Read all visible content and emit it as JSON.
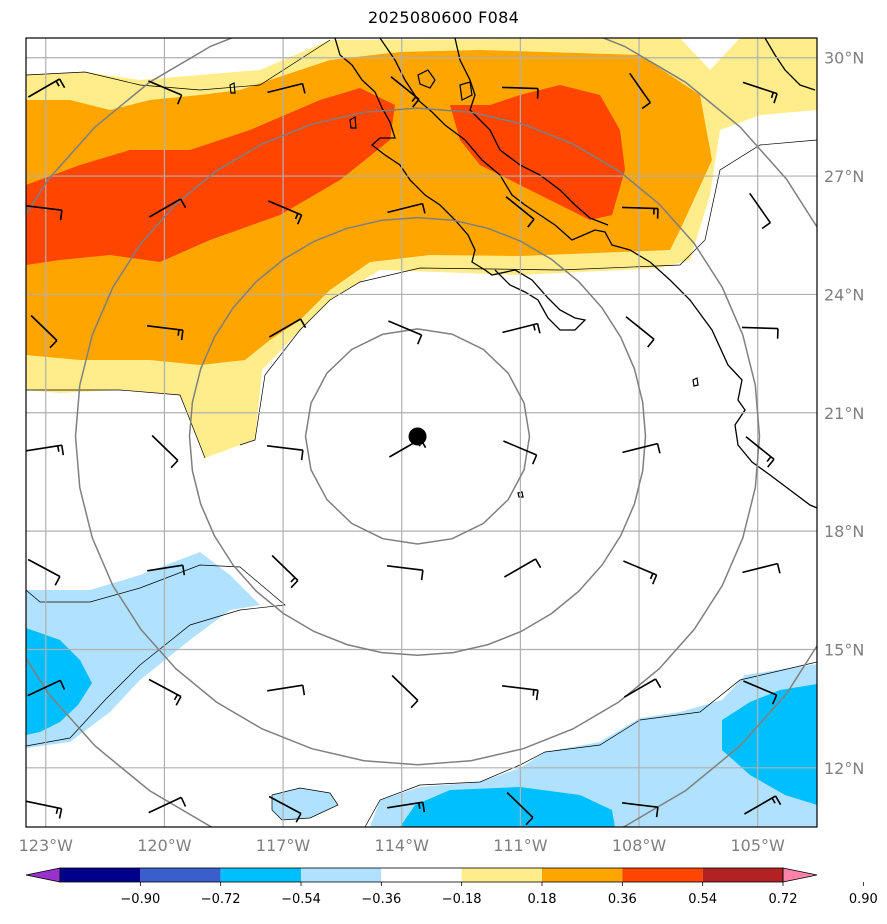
{
  "title": "2025080600 F084",
  "longitude_labels": [
    "123°W",
    "120°W",
    "117°W",
    "114°W",
    "111°W",
    "108°W",
    "105°W"
  ],
  "latitude_labels": [
    "30°N",
    "27°N",
    "24°N",
    "21°N",
    "18°N",
    "15°N",
    "12°N"
  ],
  "colorbar": {
    "ticks": [
      "−0.90",
      "−0.72",
      "−0.54",
      "−0.36",
      "−0.18",
      "0.18",
      "0.36",
      "0.54",
      "0.72",
      "0.90"
    ],
    "colors": [
      "#9932cc",
      "#00008b",
      "#3a5fcd",
      "#00bfff",
      "#b0e2ff",
      "#ffffff",
      "#ffec8b",
      "#ffa500",
      "#ff4500",
      "#b22222",
      "#ff82ab"
    ]
  },
  "storm_center": {
    "lon": -113.6,
    "lat": 20.4
  },
  "chart_data": {
    "type": "map",
    "title": "2025080600 F084",
    "lon_range": [
      -123.5,
      -103.5
    ],
    "lat_range": [
      10.5,
      30.5
    ],
    "filled_field_levels": [
      -0.9,
      -0.72,
      -0.54,
      -0.36,
      -0.18,
      0.18,
      0.36,
      0.54,
      0.72,
      0.9
    ],
    "range_rings": "concentric circles around storm center",
    "overlay": "wind barbs on regular lat/lon grid"
  }
}
